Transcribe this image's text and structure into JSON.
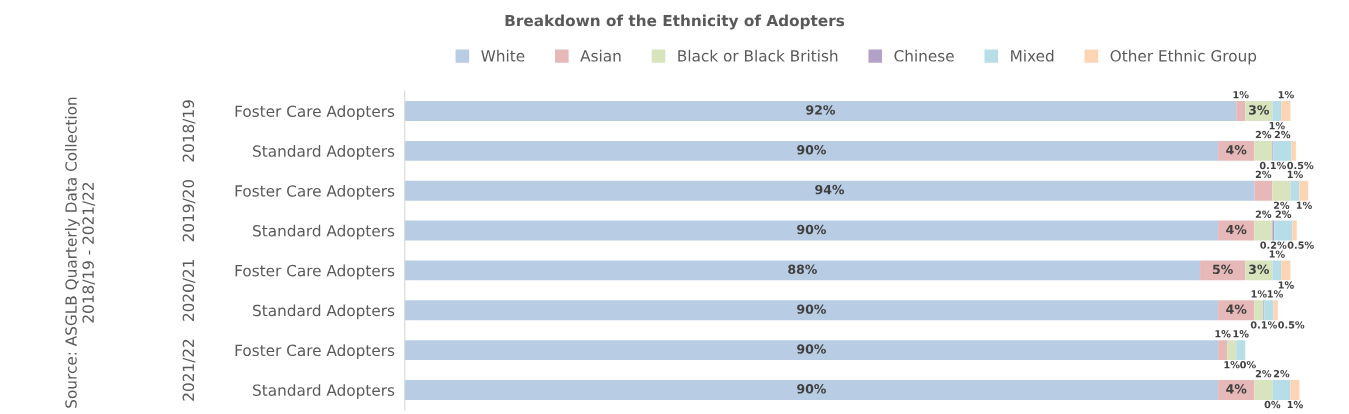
{
  "chart_data": {
    "type": "bar",
    "orientation": "horizontal",
    "stacked": true,
    "title": "Breakdown of the Ethnicity of Adopters",
    "legend": "top",
    "categories": [
      "Foster Care Adopters",
      "Standard Adopters",
      "Foster Care Adopters",
      "Standard Adopters",
      "Foster Care Adopters",
      "Standard Adopters",
      "Foster Care Adopters",
      "Standard Adopters"
    ],
    "xlim": [
      0,
      100
    ],
    "tick_labels": "y",
    "grid": false,
    "series": [
      {
        "name": "White",
        "color": "#b8cce4",
        "values": [
          92,
          90,
          94,
          90,
          88,
          90,
          90,
          90
        ],
        "value_labels": [
          "92%",
          "90%",
          "94%",
          "90%",
          "88%",
          "90%",
          "90%",
          "90%"
        ]
      },
      {
        "name": "Asian",
        "color": "#e6b9b8",
        "values": [
          1,
          4,
          2,
          4,
          5,
          4,
          1,
          4
        ],
        "value_labels": [
          "1%",
          "4%",
          "2%",
          "4%",
          "5%",
          "4%",
          "1%",
          "4%"
        ]
      },
      {
        "name": "Black or Black British",
        "color": "#d7e4bd",
        "values": [
          3,
          2,
          2,
          2,
          3,
          1,
          1,
          2
        ],
        "value_labels": [
          "3%",
          "2%",
          "2%",
          "2%",
          "3%",
          "1%",
          "1%",
          "2%"
        ]
      },
      {
        "name": "Chinese",
        "color": "#b3a2c7",
        "values": [
          null,
          0.1,
          null,
          0.2,
          null,
          0.1,
          null,
          0
        ],
        "value_labels": [
          null,
          "0.1%",
          null,
          "0.2%",
          null,
          "0.1%",
          null,
          "0%"
        ]
      },
      {
        "name": "Mixed",
        "color": "#b7dee8",
        "values": [
          1,
          2,
          1,
          2,
          1,
          1,
          1,
          2
        ],
        "value_labels": [
          "1%",
          "2%",
          "1%",
          "2%",
          "1%",
          "1%",
          "1%",
          "2%"
        ]
      },
      {
        "name": "Other Ethnic Group",
        "color": "#fcd5b5",
        "values": [
          1,
          0.5,
          1,
          0.5,
          1,
          0.5,
          0,
          1
        ],
        "value_labels": [
          "1%",
          "0.5%",
          "1%",
          "0.5%",
          "1%",
          "0.5%",
          "0%",
          "1%"
        ]
      }
    ],
    "annotations": [
      "2018/19",
      "2019/20",
      "2020/21",
      "2021/22",
      "Source: ASGLB Quarterly Data Collection 2018/19 - 2021/22"
    ]
  }
}
